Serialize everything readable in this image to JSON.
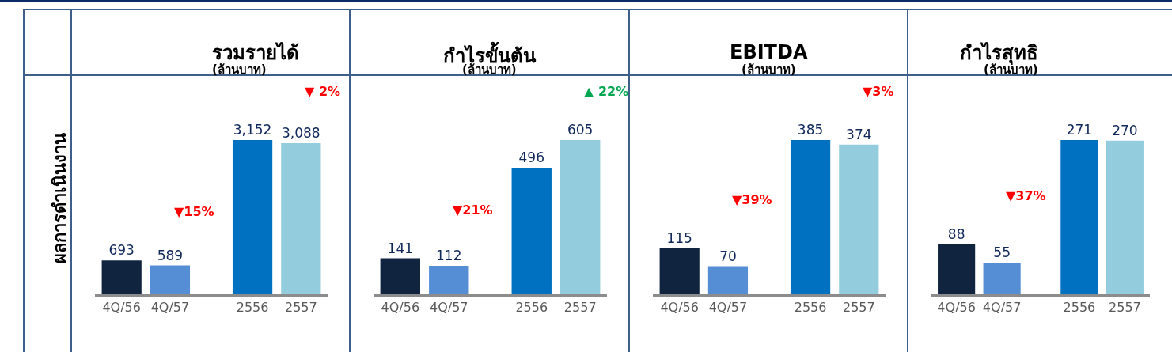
{
  "chart_data": [
    {
      "type": "bar",
      "title": "รวมรายได้",
      "subtitle": "(ล้านบาท)",
      "categories": [
        "4Q/56",
        "4Q/57",
        "2556",
        "2557"
      ],
      "colors": [
        "#10243f",
        "#558ed5",
        "#0070c0",
        "#93cddd"
      ],
      "values": [
        693,
        589,
        3152,
        3088
      ],
      "value_labels": [
        "693",
        "589",
        "3,152",
        "3,088"
      ],
      "annotations": [
        "ผลการดำเนินงาน",
        "▼15%",
        "▼ 2%"
      ]
    },
    {
      "type": "bar",
      "title": "กำไรขั้นต้น",
      "subtitle": "(ล้านบาท)",
      "categories": [
        "4Q/56",
        "4Q/57",
        "2556",
        "2557"
      ],
      "colors": [
        "#10243f",
        "#558ed5",
        "#0070c0",
        "#93cddd"
      ],
      "values": [
        141,
        112,
        496,
        605
      ],
      "data_labels": true,
      "annotations": [
        "▼21%",
        "▲ 22%"
      ]
    },
    {
      "type": "bar",
      "title": "EBITDA",
      "subtitle": "(ล้านบาท)",
      "categories": [
        "4Q/56",
        "4Q/57",
        "2556",
        "2557"
      ],
      "colors": [
        "#10243f",
        "#558ed5",
        "#0070c0",
        "#93cddd"
      ],
      "values": [
        115,
        70,
        385,
        374
      ],
      "data_labels": true,
      "annotations": [
        "▼39%",
        "▼3%"
      ]
    },
    {
      "type": "bar",
      "title": "กำไรสุทธิ",
      "subtitle": "(ล้านบาท)",
      "categories": [
        "4Q/56",
        "4Q/57",
        "2556",
        "2557"
      ],
      "colors": [
        "#10243f",
        "#558ed5",
        "#0070c0",
        "#93cddd"
      ],
      "values": [
        88,
        55,
        271,
        270
      ],
      "data_labels": true,
      "annotations": [
        "▼37%"
      ]
    }
  ]
}
